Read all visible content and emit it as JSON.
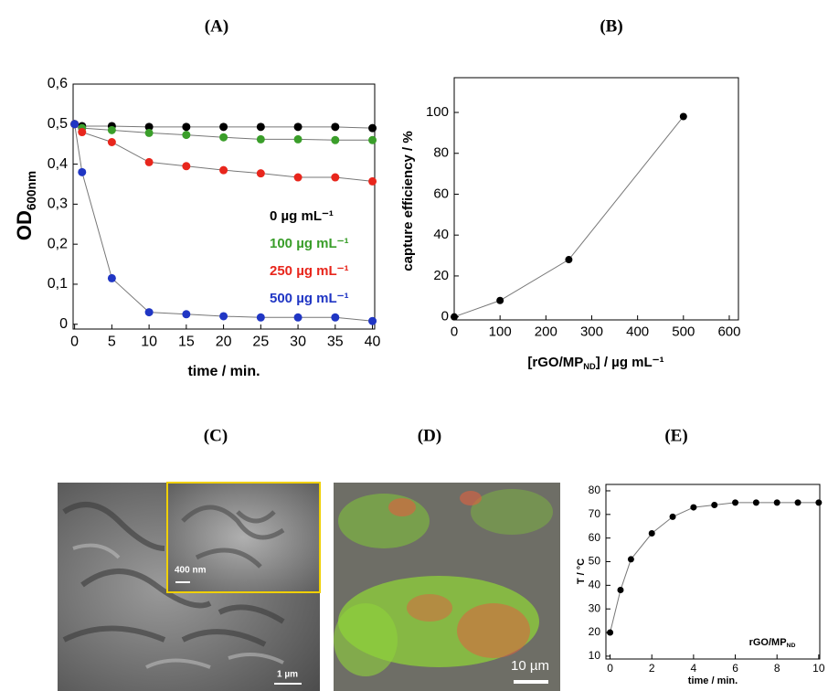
{
  "panel_labels": [
    "(A)",
    "(B)",
    "(C)",
    "(D)",
    "(E)"
  ],
  "images": [
    {
      "inset_scale_label": "400 nm",
      "scale_label": "1 µm"
    },
    {
      "scale_label": "10 µm"
    }
  ],
  "chart_data": [
    {
      "type": "line",
      "x": [
        0,
        1,
        5,
        10,
        15,
        20,
        25,
        30,
        35,
        40
      ],
      "series": [
        {
          "name": "0 µg mL⁻¹",
          "color": "#000000",
          "values": [
            0.5,
            0.495,
            0.495,
            0.493,
            0.493,
            0.493,
            0.493,
            0.493,
            0.493,
            0.49
          ]
        },
        {
          "name": "100 µg mL⁻¹",
          "color": "#3a9e2a",
          "values": [
            0.5,
            0.49,
            0.485,
            0.478,
            0.473,
            0.467,
            0.462,
            0.462,
            0.46,
            0.46
          ]
        },
        {
          "name": "250 µg mL⁻¹",
          "color": "#e8261c",
          "values": [
            0.5,
            0.48,
            0.455,
            0.405,
            0.395,
            0.385,
            0.377,
            0.367,
            0.367,
            0.357
          ]
        },
        {
          "name": "500 µg mL⁻¹",
          "color": "#2036c4",
          "values": [
            0.5,
            0.38,
            0.115,
            0.03,
            0.025,
            0.02,
            0.017,
            0.017,
            0.017,
            0.008
          ]
        }
      ],
      "xlim": [
        -0.2,
        40.3
      ],
      "ylim": [
        -0.012,
        0.6
      ],
      "xticks": [
        0,
        5,
        10,
        15,
        20,
        25,
        30,
        35,
        40
      ],
      "yticks": [
        0,
        {
          "value": 0.1,
          "label": "0,1"
        },
        {
          "value": 0.2,
          "label": "0,2"
        },
        {
          "value": 0.3,
          "label": "0,3"
        },
        {
          "value": 0.4,
          "label": "0,4"
        },
        {
          "value": 0.5,
          "label": "0,5"
        },
        {
          "value": 0.6,
          "label": "0,6"
        }
      ],
      "xlabel": "time / min.",
      "ylabel": [
        "OD",
        "600nm"
      ],
      "legend": "right"
    },
    {
      "type": "line",
      "x": [
        0,
        100,
        250,
        500
      ],
      "series": [
        {
          "color": "#000000",
          "values": [
            0,
            8,
            28,
            98
          ]
        }
      ],
      "xlim": [
        0,
        620
      ],
      "ylim": [
        -1.5,
        117
      ],
      "xticks": [
        0,
        100,
        200,
        300,
        400,
        500,
        600
      ],
      "yticks": [
        0,
        20,
        40,
        60,
        80,
        100
      ],
      "xlabel": [
        "[rGO/MP",
        "ND",
        "] / µg mL⁻¹"
      ],
      "ylabel": "capture efficiency / %"
    },
    {
      "type": "line",
      "x": [
        0,
        0.5,
        1,
        2,
        3,
        4,
        5,
        6,
        7,
        8,
        9,
        10
      ],
      "series": [
        {
          "color": "#000000",
          "values": [
            20,
            38,
            51,
            62,
            69,
            73,
            74,
            75,
            75,
            75,
            75,
            75
          ]
        }
      ],
      "xlim": [
        -0.2,
        10.05
      ],
      "ylim": [
        8.8,
        82.7
      ],
      "xticks": [
        0,
        2,
        4,
        6,
        8,
        10
      ],
      "yticks": [
        10,
        20,
        30,
        40,
        50,
        60,
        70,
        80
      ],
      "xlabel": "time / min.",
      "ylabel": "T / °C",
      "annotation": [
        "rGO/MP",
        "ND"
      ]
    }
  ]
}
